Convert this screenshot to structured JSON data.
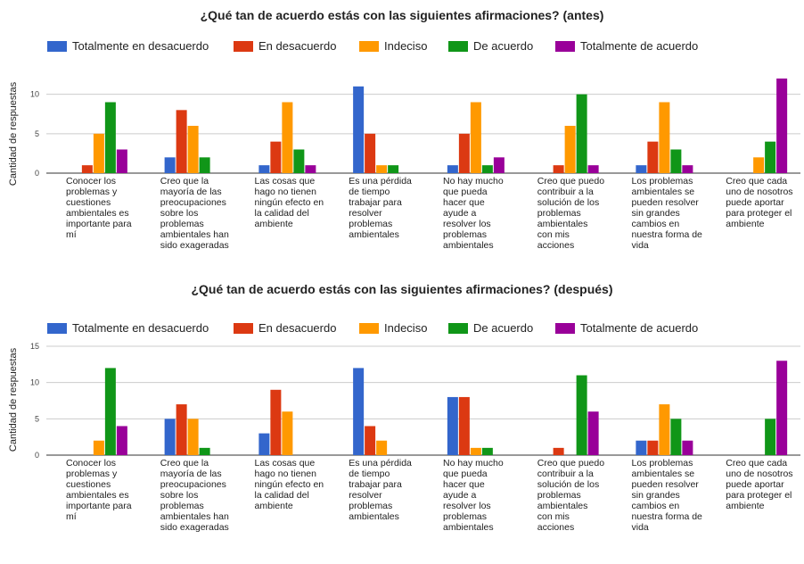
{
  "legend_labels": [
    "Totalmente en desacuerdo",
    "En desacuerdo",
    "Indeciso",
    "De acuerdo",
    "Totalmente de acuerdo"
  ],
  "series_colors": [
    "#3366cc",
    "#dc3912",
    "#ff9900",
    "#109618",
    "#990099"
  ],
  "chart_data": [
    {
      "type": "bar",
      "title": "¿Qué tan de acuerdo estás con las siguientes afirmaciones? (antes)",
      "ylabel": "Cantidad de respuestas",
      "xlabel": "",
      "ylim": [
        0,
        12
      ],
      "yticks": [
        0,
        5,
        10
      ],
      "legend_position": "top",
      "grid": true,
      "categories": [
        [
          "Conocer los",
          "problemas y",
          "cuestiones",
          "ambientales es",
          "importante para",
          "mí"
        ],
        [
          "Creo que la",
          "mayoría de las",
          "preocupaciones",
          "sobre los",
          "problemas",
          "ambientales han",
          "sido exageradas"
        ],
        [
          "Las cosas que",
          "hago no tienen",
          "ningún efecto en",
          "la calidad del",
          "ambiente"
        ],
        [
          "Es una pérdida",
          "de tiempo",
          "trabajar para",
          "resolver",
          "problemas",
          "ambientales"
        ],
        [
          "No hay mucho",
          "que pueda",
          "hacer que",
          "ayude a",
          "resolver los",
          "problemas",
          "ambientales"
        ],
        [
          "Creo que puedo",
          "contribuir a la",
          "solución de los",
          "problemas",
          "ambientales",
          "con mis",
          "acciones"
        ],
        [
          "Los problemas",
          "ambientales se",
          "pueden resolver",
          "sin grandes",
          "cambios en",
          "nuestra forma de",
          "vida"
        ],
        [
          "Creo que cada",
          "uno de nosotros",
          "puede aportar",
          "para proteger el",
          "ambiente"
        ]
      ],
      "series": [
        {
          "name": "Totalmente en desacuerdo",
          "values": [
            0,
            2,
            1,
            11,
            1,
            0,
            1,
            0
          ]
        },
        {
          "name": "En desacuerdo",
          "values": [
            1,
            8,
            4,
            5,
            5,
            1,
            4,
            0
          ]
        },
        {
          "name": "Indeciso",
          "values": [
            5,
            6,
            9,
            1,
            9,
            6,
            9,
            2
          ]
        },
        {
          "name": "De acuerdo",
          "values": [
            9,
            2,
            3,
            1,
            1,
            10,
            3,
            4
          ]
        },
        {
          "name": "Totalmente de acuerdo",
          "values": [
            3,
            0,
            1,
            0,
            2,
            1,
            1,
            12
          ]
        }
      ]
    },
    {
      "type": "bar",
      "title": "¿Qué tan de acuerdo estás con las siguientes afirmaciones? (después)",
      "ylabel": "Cantidad de respuestas",
      "xlabel": "",
      "ylim": [
        0,
        15
      ],
      "yticks": [
        0,
        5,
        10,
        15
      ],
      "legend_position": "top",
      "grid": true,
      "categories": [
        [
          "Conocer los",
          "problemas y",
          "cuestiones",
          "ambientales es",
          "importante para",
          "mí"
        ],
        [
          "Creo que la",
          "mayoría de las",
          "preocupaciones",
          "sobre los",
          "problemas",
          "ambientales han",
          "sido exageradas"
        ],
        [
          "Las cosas que",
          "hago no tienen",
          "ningún efecto en",
          "la calidad del",
          "ambiente"
        ],
        [
          "Es una pérdida",
          "de tiempo",
          "trabajar para",
          "resolver",
          "problemas",
          "ambientales"
        ],
        [
          "No hay mucho",
          "que pueda",
          "hacer que",
          "ayude a",
          "resolver los",
          "problemas",
          "ambientales"
        ],
        [
          "Creo que puedo",
          "contribuir a la",
          "solución de los",
          "problemas",
          "ambientales",
          "con mis",
          "acciones"
        ],
        [
          "Los problemas",
          "ambientales se",
          "pueden resolver",
          "sin grandes",
          "cambios en",
          "nuestra forma de",
          "vida"
        ],
        [
          "Creo que cada",
          "uno de nosotros",
          "puede aportar",
          "para proteger el",
          "ambiente"
        ]
      ],
      "series": [
        {
          "name": "Totalmente en desacuerdo",
          "values": [
            0,
            5,
            3,
            12,
            8,
            0,
            2,
            0
          ]
        },
        {
          "name": "En desacuerdo",
          "values": [
            0,
            7,
            9,
            4,
            8,
            1,
            2,
            0
          ]
        },
        {
          "name": "Indeciso",
          "values": [
            2,
            5,
            6,
            2,
            1,
            0,
            7,
            0
          ]
        },
        {
          "name": "De acuerdo",
          "values": [
            12,
            1,
            0,
            0,
            1,
            11,
            5,
            5
          ]
        },
        {
          "name": "Totalmente de acuerdo",
          "values": [
            4,
            0,
            0,
            0,
            0,
            6,
            2,
            13
          ]
        }
      ]
    }
  ]
}
